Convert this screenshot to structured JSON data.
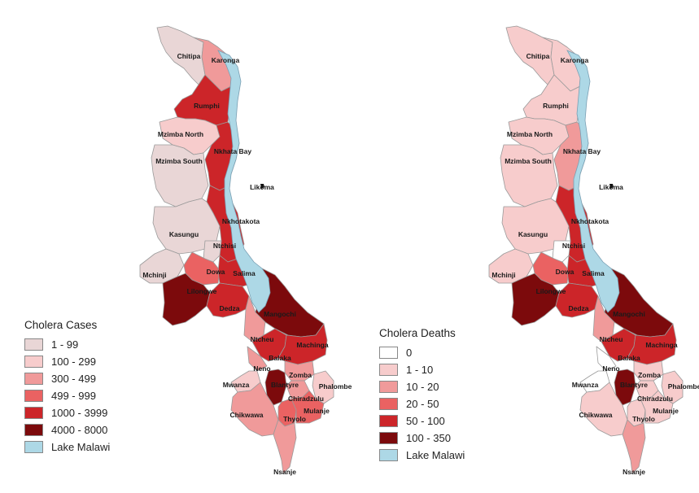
{
  "colors": {
    "cases": [
      "#e9d6d6",
      "#f7cccc",
      "#f09a9a",
      "#ea6262",
      "#cc2529",
      "#7c0a0c"
    ],
    "deaths": [
      "#ffffff",
      "#f7cccc",
      "#f09a9a",
      "#ea6262",
      "#cc2529",
      "#7c0a0c"
    ],
    "lake": "#add8e6"
  },
  "maps": {
    "left": {
      "legend": {
        "title": "Cholera Cases",
        "items": [
          "1 - 99",
          "100 - 299",
          "300 - 499",
          "499 - 999",
          "1000 - 3999",
          "4000 - 8000"
        ],
        "lake_label": "Lake Malawi"
      }
    },
    "right": {
      "legend": {
        "title": "Cholera Deaths",
        "items": [
          "0",
          "1 - 10",
          "10 - 20",
          "20 - 50",
          "50 - 100",
          "100 - 350"
        ],
        "lake_label": "Lake Malawi"
      }
    }
  },
  "districts": [
    {
      "name": "Chitipa",
      "cases_class": 0,
      "deaths_class": 1
    },
    {
      "name": "Karonga",
      "cases_class": 2,
      "deaths_class": 1
    },
    {
      "name": "Rumphi",
      "cases_class": 4,
      "deaths_class": 1
    },
    {
      "name": "Mzimba North",
      "cases_class": 1,
      "deaths_class": 1
    },
    {
      "name": "Mzimba South",
      "cases_class": 0,
      "deaths_class": 1
    },
    {
      "name": "Nkhata Bay",
      "cases_class": 4,
      "deaths_class": 2
    },
    {
      "name": "Likoma",
      "cases_class": 0,
      "deaths_class": 0
    },
    {
      "name": "Nkhotakota",
      "cases_class": 4,
      "deaths_class": 4
    },
    {
      "name": "Kasungu",
      "cases_class": 0,
      "deaths_class": 1
    },
    {
      "name": "Ntchisi",
      "cases_class": 0,
      "deaths_class": 0
    },
    {
      "name": "Dowa",
      "cases_class": 3,
      "deaths_class": 3
    },
    {
      "name": "Salima",
      "cases_class": 4,
      "deaths_class": 4
    },
    {
      "name": "Mchinji",
      "cases_class": 0,
      "deaths_class": 1
    },
    {
      "name": "Lilongwe",
      "cases_class": 5,
      "deaths_class": 5
    },
    {
      "name": "Dedza",
      "cases_class": 4,
      "deaths_class": 4
    },
    {
      "name": "Mangochi",
      "cases_class": 5,
      "deaths_class": 5
    },
    {
      "name": "Ntcheu",
      "cases_class": 2,
      "deaths_class": 2
    },
    {
      "name": "Balaka",
      "cases_class": 4,
      "deaths_class": 4
    },
    {
      "name": "Machinga",
      "cases_class": 4,
      "deaths_class": 4
    },
    {
      "name": "Neno",
      "cases_class": 2,
      "deaths_class": 0
    },
    {
      "name": "Mwanza",
      "cases_class": 1,
      "deaths_class": 0
    },
    {
      "name": "Zomba",
      "cases_class": 2,
      "deaths_class": 1
    },
    {
      "name": "Phalombe",
      "cases_class": 1,
      "deaths_class": 1
    },
    {
      "name": "Blantyre",
      "cases_class": 5,
      "deaths_class": 5
    },
    {
      "name": "Chiradzulu",
      "cases_class": 2,
      "deaths_class": 1
    },
    {
      "name": "Chikwawa",
      "cases_class": 2,
      "deaths_class": 1
    },
    {
      "name": "Thyolo",
      "cases_class": 3,
      "deaths_class": 1
    },
    {
      "name": "Mulanje",
      "cases_class": 3,
      "deaths_class": 1
    },
    {
      "name": "Nsanje",
      "cases_class": 2,
      "deaths_class": 2
    }
  ]
}
